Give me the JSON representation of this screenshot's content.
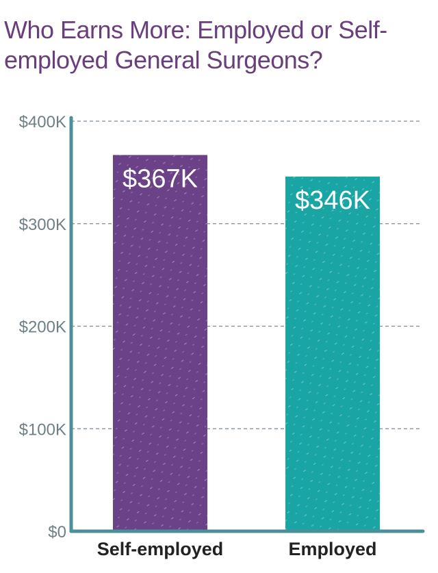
{
  "chart_data": {
    "type": "bar",
    "title": "Who Earns More: Employed or Self-employed General Surgeons?",
    "categories": [
      "Self-employed",
      "Employed"
    ],
    "values": [
      367,
      346
    ],
    "data_labels": [
      "$367K",
      "$346K"
    ],
    "colors": [
      "#6b4287",
      "#1aa5a5"
    ],
    "y_tick_values": [
      0,
      100,
      200,
      300,
      400
    ],
    "y_tick_labels": [
      "$0",
      "$100K",
      "$200K",
      "$300K",
      "$400K"
    ],
    "ylim": [
      0,
      400
    ],
    "grid": true,
    "axis_color": "#4a8f9a",
    "grid_color": "#7a8a99"
  }
}
